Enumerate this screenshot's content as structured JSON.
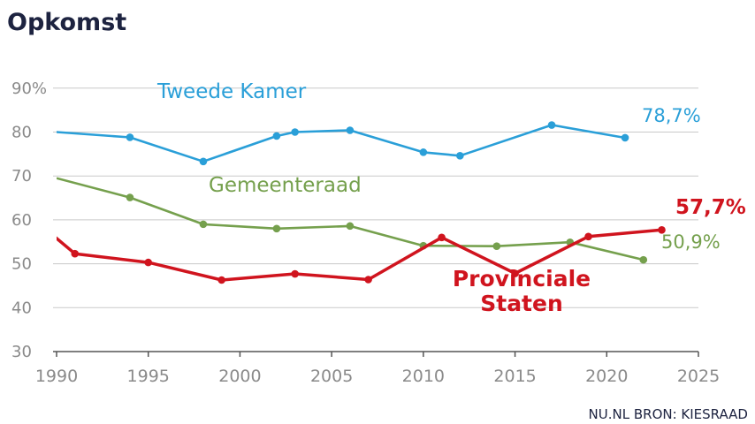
{
  "chart_data": {
    "type": "line",
    "title": "Opkomst",
    "xlabel": "",
    "ylabel": "",
    "xlim": [
      1990,
      2025
    ],
    "ylim": [
      30,
      90
    ],
    "x_ticks": [
      1990,
      1995,
      2000,
      2005,
      2010,
      2015,
      2020,
      2025
    ],
    "y_ticks": [
      "30",
      "40",
      "50",
      "60",
      "70",
      "80",
      "90%"
    ],
    "grid": true,
    "source": "NU.NL BRON: KIESRAAD",
    "series": [
      {
        "name": "Tweede Kamer",
        "color": "#2a9fd8",
        "end_label": "78,7%",
        "points": [
          [
            1989,
            80.3
          ],
          [
            1994,
            78.8
          ],
          [
            1998,
            73.3
          ],
          [
            2002,
            79.1
          ],
          [
            2003,
            80.0
          ],
          [
            2006,
            80.4
          ],
          [
            2010,
            75.4
          ],
          [
            2012,
            74.6
          ],
          [
            2017,
            81.6
          ],
          [
            2021,
            78.7
          ]
        ]
      },
      {
        "name": "Gemeenteraad",
        "color": "#75a04d",
        "end_label": "50,9%",
        "points": [
          [
            1990,
            69.5
          ],
          [
            1994,
            65.1
          ],
          [
            1998,
            59.0
          ],
          [
            2002,
            58.0
          ],
          [
            2006,
            58.6
          ],
          [
            2010,
            54.1
          ],
          [
            2014,
            54.0
          ],
          [
            2018,
            54.9
          ],
          [
            2022,
            50.9
          ]
        ]
      },
      {
        "name": "Provinciale Staten",
        "color": "#d0141e",
        "end_label": "57,7%",
        "points": [
          [
            1987,
            66.3
          ],
          [
            1991,
            52.3
          ],
          [
            1995,
            50.3
          ],
          [
            1999,
            46.3
          ],
          [
            2003,
            47.7
          ],
          [
            2007,
            46.4
          ],
          [
            2011,
            56.0
          ],
          [
            2015,
            47.8
          ],
          [
            2019,
            56.2
          ],
          [
            2023,
            57.7
          ]
        ]
      }
    ]
  }
}
